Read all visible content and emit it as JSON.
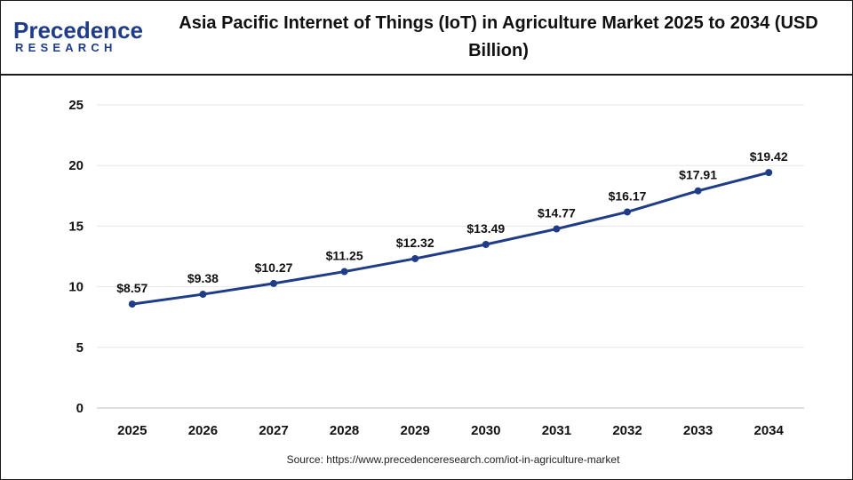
{
  "brand": {
    "logo_word": "Precedence",
    "logo_sub": "RESEARCH"
  },
  "colors": {
    "line": "#1f3c88",
    "logo": "#1f3c88",
    "grid": "#e6e6e6"
  },
  "chart_data": {
    "type": "line",
    "title": "Asia Pacific Internet of Things (IoT) in Agriculture Market 2025 to 2034 (USD Billion)",
    "xlabel": "",
    "ylabel": "",
    "categories": [
      "2025",
      "2026",
      "2027",
      "2028",
      "2029",
      "2030",
      "2031",
      "2032",
      "2033",
      "2034"
    ],
    "series": [
      {
        "values": [
          8.57,
          9.38,
          10.27,
          11.25,
          12.32,
          13.49,
          14.77,
          16.17,
          17.91,
          19.42
        ],
        "labels": [
          "$8.57",
          "$9.38",
          "$10.27",
          "$11.25",
          "$12.32",
          "$13.49",
          "$14.77",
          "$16.17",
          "$17.91",
          "$19.42"
        ]
      }
    ],
    "ylim": [
      0,
      25
    ],
    "yticks": [
      "0",
      "5",
      "10",
      "15",
      "20",
      "25"
    ],
    "grid": "horizontal",
    "legend": "none"
  },
  "source": "Source: https://www.precedenceresearch.com/iot-in-agriculture-market"
}
